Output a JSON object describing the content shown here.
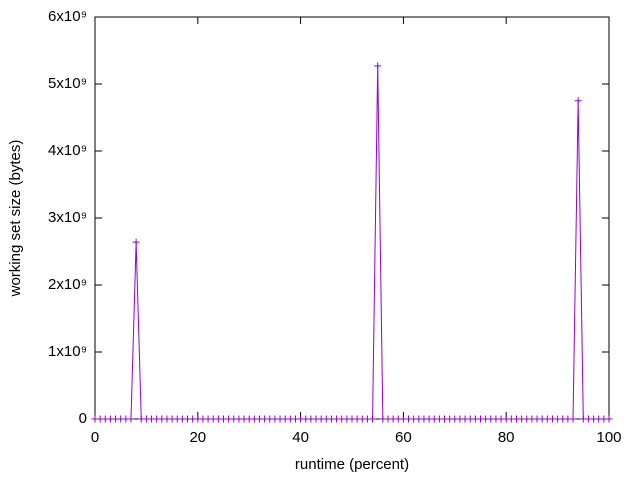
{
  "chart_data": {
    "type": "line",
    "xlabel": "runtime (percent)",
    "ylabel": "working set size (bytes)",
    "x": [
      0,
      1,
      2,
      3,
      4,
      5,
      6,
      7,
      8,
      9,
      10,
      11,
      12,
      13,
      14,
      15,
      16,
      17,
      18,
      19,
      20,
      21,
      22,
      23,
      24,
      25,
      26,
      27,
      28,
      29,
      30,
      31,
      32,
      33,
      34,
      35,
      36,
      37,
      38,
      39,
      40,
      41,
      42,
      43,
      44,
      45,
      46,
      47,
      48,
      49,
      50,
      51,
      52,
      53,
      54,
      55,
      56,
      57,
      58,
      59,
      60,
      61,
      62,
      63,
      64,
      65,
      66,
      67,
      68,
      69,
      70,
      71,
      72,
      73,
      74,
      75,
      76,
      77,
      78,
      79,
      80,
      81,
      82,
      83,
      84,
      85,
      86,
      87,
      88,
      89,
      90,
      91,
      92,
      93,
      94,
      95,
      96,
      97,
      98,
      99,
      100
    ],
    "series": [
      {
        "color": "#9400d3",
        "marker": "+",
        "values": [
          0,
          0,
          0,
          0,
          0,
          0,
          0,
          0,
          2640000000,
          0,
          0,
          0,
          0,
          0,
          0,
          0,
          0,
          0,
          0,
          0,
          0,
          0,
          0,
          0,
          0,
          0,
          0,
          0,
          0,
          0,
          0,
          0,
          0,
          0,
          0,
          0,
          0,
          0,
          0,
          0,
          0,
          0,
          0,
          0,
          0,
          0,
          0,
          0,
          0,
          0,
          0,
          0,
          0,
          0,
          0,
          5270000000,
          0,
          0,
          0,
          0,
          0,
          0,
          0,
          0,
          0,
          0,
          0,
          0,
          0,
          0,
          0,
          0,
          0,
          0,
          0,
          0,
          0,
          0,
          0,
          0,
          0,
          0,
          0,
          0,
          0,
          0,
          0,
          0,
          0,
          0,
          0,
          0,
          0,
          0,
          4750000000,
          0,
          0,
          0,
          0,
          0,
          0
        ]
      }
    ],
    "xlim": [
      0,
      100
    ],
    "xticks": [
      0,
      20,
      40,
      60,
      80,
      100
    ],
    "ylim": [
      0,
      6000000000
    ],
    "yticks": [
      0,
      {
        "value": 1000000000,
        "label": "1x10⁹"
      },
      {
        "value": 2000000000,
        "label": "2x10⁹"
      },
      {
        "value": 3000000000,
        "label": "3x10⁹"
      },
      {
        "value": 4000000000,
        "label": "4x10⁹"
      },
      {
        "value": 5000000000,
        "label": "5x10⁹"
      },
      {
        "value": 6000000000,
        "label": "6x10⁹"
      }
    ],
    "grid": false,
    "mirror_ticks": true
  }
}
